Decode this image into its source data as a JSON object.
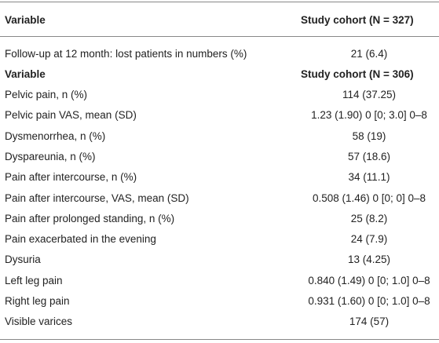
{
  "header": {
    "variable": "Variable",
    "cohort": "Study cohort (N = 327)"
  },
  "followup": {
    "label": "Follow-up at 12 month: lost patients in numbers (%)",
    "value": "21 (6.4)"
  },
  "subheader": {
    "variable": "Variable",
    "cohort": "Study cohort (N = 306)"
  },
  "table": {
    "rows": [
      [
        "Pelvic pain, n (%)",
        "114 (37.25)"
      ],
      [
        "Pelvic pain VAS, mean (SD)",
        "1.23 (1.90) 0 [0; 3.0] 0–8"
      ],
      [
        "Dysmenorrhea, n (%)",
        "58 (19)"
      ],
      [
        "Dyspareunia, n (%)",
        "57 (18.6)"
      ],
      [
        "Pain after intercourse, n (%)",
        "34 (11.1)"
      ],
      [
        "Pain after intercourse, VAS, mean (SD)",
        "0.508 (1.46) 0 [0; 0] 0–8"
      ],
      [
        "Pain after prolonged standing, n (%)",
        "25 (8.2)"
      ],
      [
        "Pain exacerbated in the evening",
        "24 (7.9)"
      ],
      [
        "Dysuria",
        "13 (4.25)"
      ],
      [
        "Left leg pain",
        "0.840 (1.49) 0 [0; 1.0] 0–8"
      ],
      [
        "Right leg pain",
        "0.931 (1.60) 0 [0; 1.0] 0–8"
      ],
      [
        "Visible varices",
        "174 (57)"
      ]
    ]
  }
}
